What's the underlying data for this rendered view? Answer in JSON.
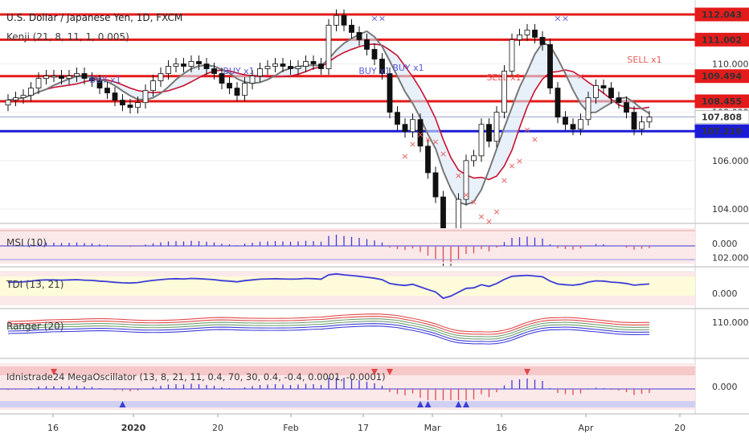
{
  "title": "U.S. Dollar / Japanese Yen, 1D, FXCM",
  "panes": {
    "main_indicator": "Kenji (21, 8, 11, 1, 0.005)",
    "msi": "MSI (10)",
    "tdi": "TDI (13, 21)",
    "ranger": "Ranger (20)",
    "mega": "Idnistrade24 MegaOscillator (13, 8, 21, 11, 0.4, 70, 30, 0.4, -0.4, 0.0001, -0.0001)"
  },
  "price_axis": {
    "ticks": [
      "110.000",
      "108.000",
      "106.000",
      "104.000",
      "102.000"
    ],
    "badges": [
      {
        "value": "112.043",
        "color": "#e31b1b"
      },
      {
        "value": "111.002",
        "color": "#e31b1b"
      },
      {
        "value": "109.494",
        "color": "#e31b1b"
      },
      {
        "value": "108.455",
        "color": "#e31b1b"
      },
      {
        "value": "107.808",
        "color": "#ffffff"
      },
      {
        "value": "107.219",
        "color": "#1c1cd6"
      }
    ]
  },
  "sub_axis": {
    "msi": "0.000",
    "tdi": "0.000",
    "ranger": "110.000",
    "mega": "0.000"
  },
  "time_axis": [
    "16",
    "2020",
    "20",
    "Feb",
    "17",
    "Mar",
    "16",
    "Apr",
    "20"
  ],
  "signals": [
    {
      "text": "BUY x1",
      "color": "#5a5ad6"
    },
    {
      "text": "BUY x1",
      "color": "#5a5ad6"
    },
    {
      "text": "BUY x1",
      "color": "#5a5ad6"
    },
    {
      "text": "BUY x1",
      "color": "#5a5ad6"
    },
    {
      "text": "SELL x1",
      "color": "#e85a5a"
    },
    {
      "text": "SELL x1",
      "color": "#e85a5a"
    }
  ],
  "colors": {
    "resistance": "#e31b1b",
    "support": "#1c1cd6",
    "bull_candle": "#ffffff",
    "bear_candle": "#111111",
    "kenji_fast": "#777777",
    "kenji_slow": "#c8102e"
  },
  "chart_data": {
    "type": "candlestick",
    "symbol": "USDJPY",
    "timeframe": "1D",
    "horizontal_levels": [
      112.043,
      111.002,
      109.494,
      108.455,
      107.808,
      107.219
    ],
    "close_series": [
      108.5,
      108.6,
      108.7,
      109.0,
      109.4,
      109.5,
      109.5,
      109.4,
      109.5,
      109.6,
      109.4,
      109.3,
      109.0,
      108.8,
      108.5,
      108.3,
      108.2,
      108.4,
      108.9,
      109.3,
      109.6,
      109.9,
      110.0,
      109.9,
      110.1,
      110.0,
      109.8,
      109.6,
      109.2,
      109.0,
      108.7,
      109.2,
      109.5,
      109.8,
      109.9,
      110.0,
      109.9,
      109.8,
      109.9,
      110.1,
      110.0,
      109.8,
      111.6,
      112.0,
      111.6,
      111.3,
      111.0,
      110.6,
      110.2,
      109.6,
      108.0,
      107.5,
      107.2,
      107.7,
      106.6,
      105.5,
      104.5,
      101.9,
      102.8,
      104.4,
      106.0,
      106.2,
      107.5,
      106.8,
      108.0,
      109.7,
      111.0,
      111.2,
      111.4,
      111.1,
      110.8,
      109.0,
      107.8,
      107.5,
      107.3,
      107.7,
      108.6,
      109.1,
      109.0,
      108.6,
      108.4,
      108.0,
      107.3,
      107.6,
      107.8
    ],
    "ohlc_note": "values estimated from price axis (102-112)"
  }
}
